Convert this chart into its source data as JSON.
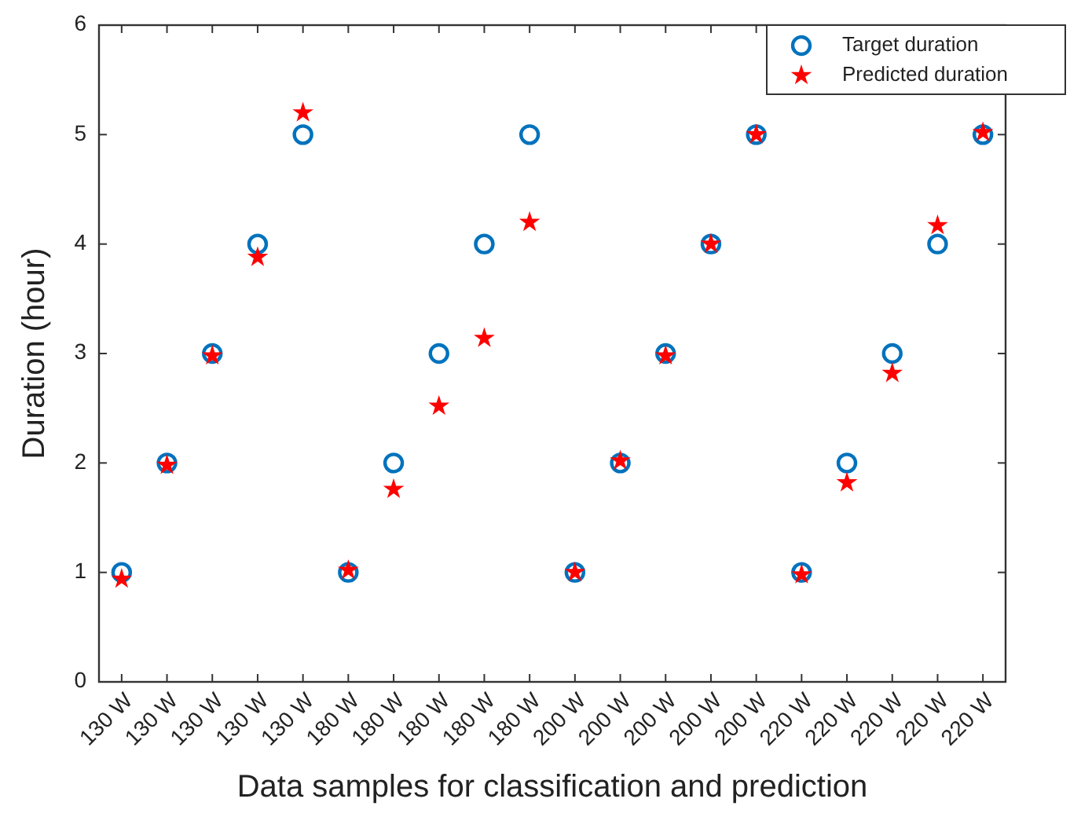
{
  "chart_data": {
    "type": "scatter",
    "xlabel": "Data samples for classification and prediction",
    "ylabel": "Duration (hour)",
    "categories": [
      "130 W",
      "130 W",
      "130 W",
      "130 W",
      "130 W",
      "180 W",
      "180 W",
      "180 W",
      "180 W",
      "180 W",
      "200 W",
      "200 W",
      "200 W",
      "200 W",
      "200 W",
      "220 W",
      "220 W",
      "220 W",
      "220 W",
      "220 W"
    ],
    "ylim": [
      0,
      6
    ],
    "yticks": [
      0,
      1,
      2,
      3,
      4,
      5,
      6
    ],
    "grid": false,
    "legend": "top right",
    "series": [
      {
        "name": "Target duration",
        "color": "#0072bd",
        "marker": "circle",
        "values": [
          1,
          2,
          3,
          4,
          5,
          1,
          2,
          3,
          4,
          5,
          1,
          2,
          3,
          4,
          5,
          1,
          2,
          3,
          4,
          5
        ]
      },
      {
        "name": "Predicted duration",
        "color": "#ff0000",
        "marker": "star",
        "values": [
          0.94,
          1.98,
          2.98,
          3.88,
          5.2,
          1.02,
          1.76,
          2.52,
          3.14,
          4.2,
          1.0,
          2.02,
          2.98,
          4.0,
          5.0,
          0.98,
          1.82,
          2.82,
          4.17,
          5.02
        ]
      }
    ]
  }
}
